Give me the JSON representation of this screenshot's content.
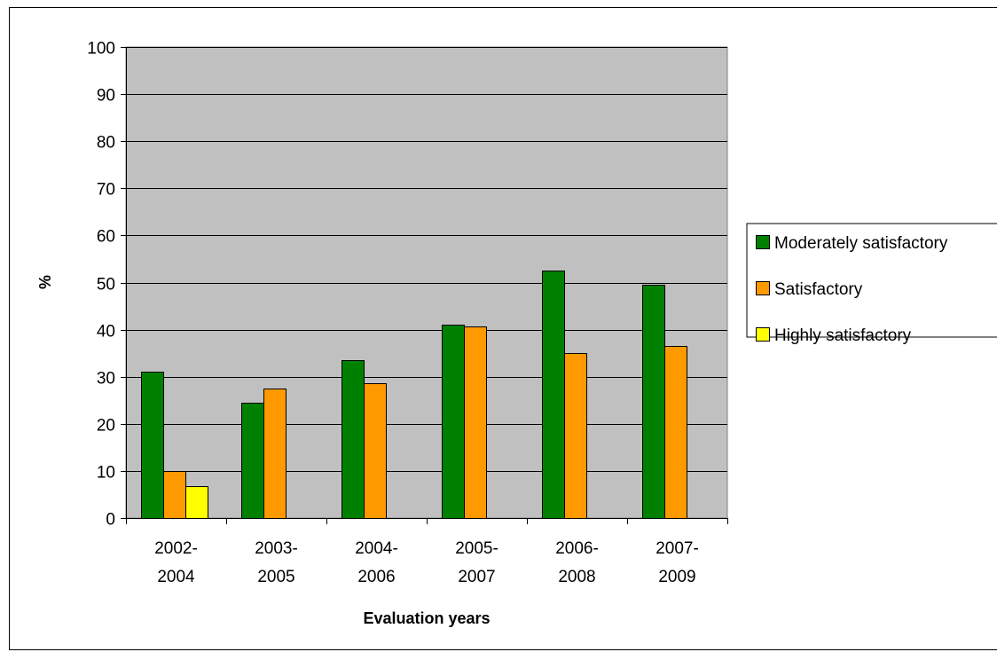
{
  "chart_data": {
    "type": "bar",
    "title": "",
    "xlabel": "Evaluation years",
    "ylabel": "%",
    "ylim": [
      0,
      100
    ],
    "yticks": [
      0,
      10,
      20,
      30,
      40,
      50,
      60,
      70,
      80,
      90,
      100
    ],
    "grid": true,
    "legend_position": "right",
    "categories": [
      [
        "2002-",
        "2004"
      ],
      [
        "2003-",
        "2005"
      ],
      [
        "2004-",
        "2006"
      ],
      [
        "2005-",
        "2007"
      ],
      [
        "2006-",
        "2008"
      ],
      [
        "2007-",
        "2009"
      ]
    ],
    "series": [
      {
        "name": "Moderately satisfactory",
        "color": "#008000",
        "values": [
          31,
          24.5,
          33.5,
          41,
          52.5,
          49.5
        ]
      },
      {
        "name": "Satisfactory",
        "color": "#FF9900",
        "values": [
          10,
          27.5,
          28.7,
          40.7,
          35,
          36.5
        ]
      },
      {
        "name": "Highly satisfactory",
        "color": "#FFFF00",
        "values": [
          6.7,
          null,
          null,
          null,
          null,
          null
        ]
      }
    ],
    "colors": {
      "plot_background": "#C0C0C0",
      "gridline": "#000000"
    }
  }
}
